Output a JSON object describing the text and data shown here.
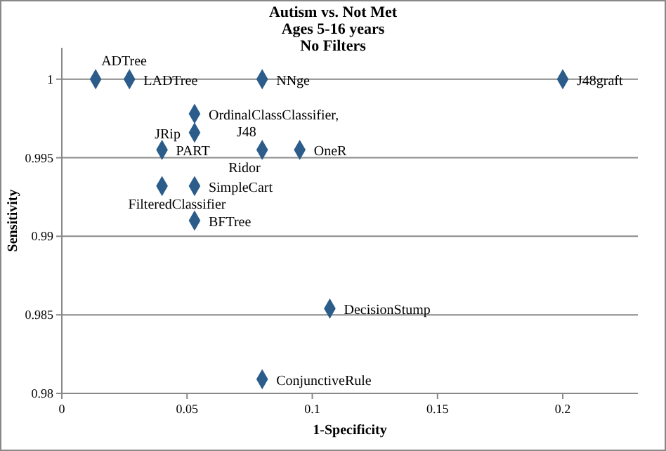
{
  "chart_data": {
    "type": "scatter",
    "title": "Autism vs. Not Met\nAges 5-16 years\nNo Filters",
    "xlabel": "1-Specificity",
    "ylabel": "Sensitivity",
    "xlim": [
      0,
      0.23
    ],
    "ylim": [
      0.98,
      1.002
    ],
    "xticks": [
      0,
      0.05,
      0.1,
      0.15,
      0.2
    ],
    "yticks": [
      0.98,
      0.985,
      0.99,
      0.995,
      1
    ],
    "grid": "y",
    "marker": "diamond",
    "series": [
      {
        "color": "#2b5c8a",
        "x": [
          0.0135,
          0.027,
          0.08,
          0.2,
          0.053,
          0.053,
          0.04,
          0.08,
          0.095,
          0.04,
          0.053,
          0.053,
          0.107,
          0.08
        ],
        "values": [
          1,
          1,
          1,
          1,
          0.9978,
          0.9966,
          0.9955,
          0.9955,
          0.9955,
          0.9932,
          0.9932,
          0.991,
          0.9854,
          0.9809
        ]
      }
    ],
    "annotations": [
      {
        "text": "ADTree",
        "x": 0.0135,
        "y": 1
      },
      {
        "text": "LADTree",
        "x": 0.027,
        "y": 1
      },
      {
        "text": "NNge",
        "x": 0.08,
        "y": 1
      },
      {
        "text": "J48graft",
        "x": 0.2,
        "y": 1
      },
      {
        "text": "OrdinalClassClassifier, J48",
        "x": 0.053,
        "y": 0.9978
      },
      {
        "text": "JRip",
        "x": 0.053,
        "y": 0.9966
      },
      {
        "text": "PART",
        "x": 0.04,
        "y": 0.9955
      },
      {
        "text": "Ridor",
        "x": 0.08,
        "y": 0.9955
      },
      {
        "text": "OneR",
        "x": 0.095,
        "y": 0.9955
      },
      {
        "text": "FilteredClassifier",
        "x": 0.04,
        "y": 0.9932
      },
      {
        "text": "SimpleCart",
        "x": 0.053,
        "y": 0.9932
      },
      {
        "text": "BFTree",
        "x": 0.053,
        "y": 0.991
      },
      {
        "text": "DecisionStump",
        "x": 0.107,
        "y": 0.9854
      },
      {
        "text": "ConjunctiveRule",
        "x": 0.08,
        "y": 0.9809
      }
    ]
  }
}
